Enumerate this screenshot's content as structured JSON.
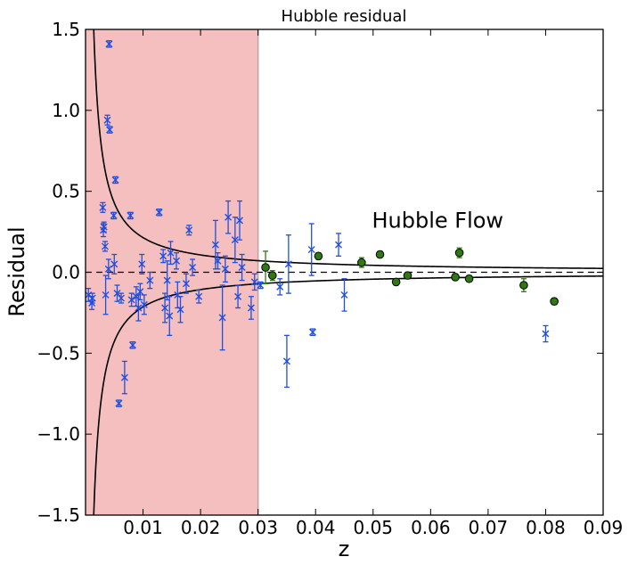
{
  "chart_data": {
    "type": "scatter",
    "title": "Hubble residual",
    "xlabel": "z",
    "ylabel": "Residual",
    "xlim": [
      0.0,
      0.09
    ],
    "ylim": [
      -1.5,
      1.5
    ],
    "x_ticks": [
      0.01,
      0.02,
      0.03,
      0.04,
      0.05,
      0.06,
      0.07,
      0.08,
      0.09
    ],
    "x_tick_labels": [
      "0.01",
      "0.02",
      "0.03",
      "0.04",
      "0.05",
      "0.06",
      "0.07",
      "0.08",
      "0.09"
    ],
    "y_ticks": [
      1.5,
      1.0,
      0.5,
      0.0,
      -0.5,
      -1.0,
      -1.5
    ],
    "y_tick_labels": [
      "1.5",
      "1.0",
      "0.5",
      "0.0",
      "−0.5",
      "−1.0",
      "−1.5"
    ],
    "grid": false,
    "shaded_region": {
      "x_start": 0.0,
      "x_end": 0.03,
      "color": "#f5bfbf"
    },
    "annotation": {
      "text": "Hubble Flow",
      "x": 0.0498,
      "y": 0.32
    },
    "colors": {
      "blue": "#1f4fe0",
      "green": "#2e7a10",
      "envelope": "#000000"
    },
    "series": [
      {
        "marker": "x",
        "points": [
          {
            "x": 0.0005,
            "y": -0.14,
            "e": 0.04
          },
          {
            "x": 0.0011,
            "y": -0.19,
            "e": 0.04
          },
          {
            "x": 0.0012,
            "y": -0.16,
            "e": 0.03
          },
          {
            "x": 0.003,
            "y": 0.4,
            "e": 0.03
          },
          {
            "x": 0.0031,
            "y": 0.26,
            "e": 0.04
          },
          {
            "x": 0.0032,
            "y": 0.28,
            "e": 0.03
          },
          {
            "x": 0.0034,
            "y": 0.16,
            "e": 0.03
          },
          {
            "x": 0.0035,
            "y": -0.14,
            "e": 0.12
          },
          {
            "x": 0.0038,
            "y": 0.94,
            "e": 0.03
          },
          {
            "x": 0.004,
            "y": 0.02,
            "e": 0.06
          },
          {
            "x": 0.0041,
            "y": 1.41,
            "e": 0.02
          },
          {
            "x": 0.0042,
            "y": 0.88,
            "e": 0.02
          },
          {
            "x": 0.0049,
            "y": 0.35,
            "e": 0.02
          },
          {
            "x": 0.005,
            "y": 0.05,
            "e": 0.06
          },
          {
            "x": 0.0052,
            "y": 0.57,
            "e": 0.02
          },
          {
            "x": 0.0055,
            "y": -0.13,
            "e": 0.05
          },
          {
            "x": 0.0058,
            "y": -0.81,
            "e": 0.02
          },
          {
            "x": 0.0062,
            "y": -0.16,
            "e": 0.03
          },
          {
            "x": 0.0068,
            "y": -0.65,
            "e": 0.1
          },
          {
            "x": 0.0078,
            "y": 0.35,
            "e": 0.02
          },
          {
            "x": 0.008,
            "y": -0.17,
            "e": 0.04
          },
          {
            "x": 0.0082,
            "y": -0.45,
            "e": 0.02
          },
          {
            "x": 0.0088,
            "y": -0.15,
            "e": 0.06
          },
          {
            "x": 0.0092,
            "y": -0.22,
            "e": 0.08
          },
          {
            "x": 0.0095,
            "y": -0.12,
            "e": 0.05
          },
          {
            "x": 0.0098,
            "y": 0.05,
            "e": 0.06
          },
          {
            "x": 0.0102,
            "y": -0.2,
            "e": 0.06
          },
          {
            "x": 0.0112,
            "y": -0.05,
            "e": 0.05
          },
          {
            "x": 0.0128,
            "y": 0.37,
            "e": 0.02
          },
          {
            "x": 0.0135,
            "y": 0.1,
            "e": 0.04
          },
          {
            "x": 0.0138,
            "y": -0.22,
            "e": 0.09
          },
          {
            "x": 0.0142,
            "y": -0.05,
            "e": 0.12
          },
          {
            "x": 0.0146,
            "y": -0.27,
            "e": 0.12
          },
          {
            "x": 0.0148,
            "y": 0.12,
            "e": 0.07
          },
          {
            "x": 0.0158,
            "y": 0.07,
            "e": 0.05
          },
          {
            "x": 0.016,
            "y": -0.14,
            "e": 0.08
          },
          {
            "x": 0.0165,
            "y": -0.23,
            "e": 0.08
          },
          {
            "x": 0.0175,
            "y": -0.07,
            "e": 0.06
          },
          {
            "x": 0.018,
            "y": 0.26,
            "e": 0.03
          },
          {
            "x": 0.0186,
            "y": 0.03,
            "e": 0.05
          },
          {
            "x": 0.0197,
            "y": -0.15,
            "e": 0.04
          },
          {
            "x": 0.0226,
            "y": 0.17,
            "e": 0.15
          },
          {
            "x": 0.023,
            "y": 0.07,
            "e": 0.05
          },
          {
            "x": 0.0238,
            "y": -0.28,
            "e": 0.2
          },
          {
            "x": 0.0243,
            "y": 0.02,
            "e": 0.08
          },
          {
            "x": 0.0248,
            "y": 0.34,
            "e": 0.1
          },
          {
            "x": 0.026,
            "y": 0.2,
            "e": 0.14
          },
          {
            "x": 0.0265,
            "y": -0.15,
            "e": 0.07
          },
          {
            "x": 0.0268,
            "y": 0.32,
            "e": 0.12
          },
          {
            "x": 0.0272,
            "y": 0.03,
            "e": 0.08
          },
          {
            "x": 0.0288,
            "y": -0.22,
            "e": 0.07
          },
          {
            "x": 0.0294,
            "y": -0.06,
            "e": 0.05
          },
          {
            "x": 0.0304,
            "y": -0.08,
            "e": 0.02
          },
          {
            "x": 0.0338,
            "y": -0.09,
            "e": 0.05
          },
          {
            "x": 0.035,
            "y": -0.55,
            "e": 0.16
          },
          {
            "x": 0.0353,
            "y": 0.05,
            "e": 0.18
          },
          {
            "x": 0.0393,
            "y": 0.14,
            "e": 0.16
          },
          {
            "x": 0.0395,
            "y": -0.37,
            "e": 0.02
          },
          {
            "x": 0.044,
            "y": 0.17,
            "e": 0.07
          },
          {
            "x": 0.045,
            "y": -0.14,
            "e": 0.1
          },
          {
            "x": 0.08,
            "y": -0.38,
            "e": 0.05
          }
        ]
      },
      {
        "marker": "circle",
        "points": [
          {
            "x": 0.0313,
            "y": 0.03,
            "e": 0.1
          },
          {
            "x": 0.0325,
            "y": -0.02,
            "e": 0.03
          },
          {
            "x": 0.0405,
            "y": 0.1,
            "e": 0.02
          },
          {
            "x": 0.048,
            "y": 0.06,
            "e": 0.03
          },
          {
            "x": 0.0512,
            "y": 0.11,
            "e": 0.02
          },
          {
            "x": 0.054,
            "y": -0.06,
            "e": 0.02
          },
          {
            "x": 0.056,
            "y": -0.02,
            "e": 0.02
          },
          {
            "x": 0.0643,
            "y": -0.03,
            "e": 0.02
          },
          {
            "x": 0.065,
            "y": 0.12,
            "e": 0.03
          },
          {
            "x": 0.0667,
            "y": -0.04,
            "e": 0.02
          },
          {
            "x": 0.0762,
            "y": -0.08,
            "e": 0.04
          },
          {
            "x": 0.0815,
            "y": -0.18,
            "e": 0.02
          }
        ]
      }
    ],
    "envelope": {
      "k": 0.00214,
      "y_clip": 1.5
    },
    "zero_line": {
      "y": 0.0,
      "style": "dashed"
    }
  }
}
